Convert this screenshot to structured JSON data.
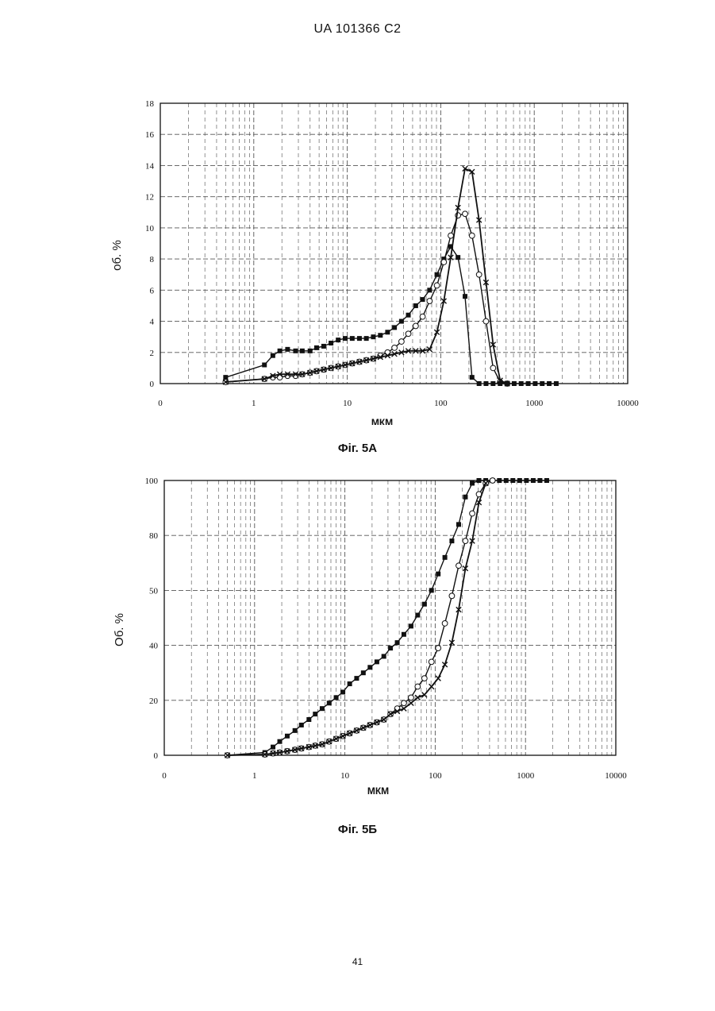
{
  "header": "UA   101366   C2",
  "page_number": "41",
  "captions": [
    "Фіг. 5А",
    "Фіг. 5Б"
  ],
  "chart_data": [
    {
      "type": "line",
      "xscale": "log",
      "xlabel": "МКМ",
      "ylabel": "об. %",
      "xticks": [
        "0",
        "1",
        "10",
        "100",
        "1000",
        "10000"
      ],
      "yticks": [
        "0",
        "2",
        "4",
        "6",
        "8",
        "10",
        "12",
        "14",
        "16",
        "18"
      ],
      "ylim": [
        0,
        18
      ],
      "grid": true,
      "series": [
        {
          "marker": "square",
          "x": [
            0.5,
            1.3,
            1.6,
            1.9,
            2.3,
            2.8,
            3.3,
            4.0,
            4.7,
            5.6,
            6.7,
            8.0,
            9.5,
            11.3,
            13.5,
            16,
            19,
            22.6,
            27,
            32,
            38,
            45,
            54,
            64,
            76,
            91,
            108,
            128,
            153,
            182,
            216,
            257
          ],
          "y": [
            0.4,
            1.2,
            1.8,
            2.1,
            2.2,
            2.1,
            2.1,
            2.1,
            2.3,
            2.4,
            2.6,
            2.8,
            2.9,
            2.9,
            2.9,
            2.9,
            3.0,
            3.1,
            3.3,
            3.6,
            4.0,
            4.4,
            5.0,
            5.4,
            6.0,
            7.0,
            8.0,
            8.8,
            8.1,
            5.6,
            0.4,
            0
          ]
        },
        {
          "marker": "circle",
          "x": [
            0.5,
            1.3,
            1.6,
            1.9,
            2.3,
            2.8,
            3.3,
            4.0,
            4.7,
            5.6,
            6.7,
            8.0,
            9.5,
            11.3,
            13.5,
            16,
            19,
            22.6,
            27,
            32,
            38,
            45,
            54,
            64,
            76,
            91,
            108,
            128,
            153,
            182,
            216,
            257,
            305,
            363,
            432,
            514
          ],
          "y": [
            0.1,
            0.3,
            0.4,
            0.4,
            0.5,
            0.5,
            0.6,
            0.7,
            0.8,
            0.9,
            1.0,
            1.1,
            1.2,
            1.3,
            1.4,
            1.5,
            1.6,
            1.8,
            2.0,
            2.3,
            2.7,
            3.2,
            3.7,
            4.3,
            5.3,
            6.3,
            7.8,
            9.5,
            10.8,
            10.9,
            9.5,
            7.0,
            4.0,
            1.0,
            0.1,
            0
          ]
        },
        {
          "marker": "x",
          "x": [
            0.5,
            1.3,
            1.6,
            1.9,
            2.3,
            2.8,
            3.3,
            4.0,
            4.7,
            5.6,
            6.7,
            8.0,
            9.5,
            11.3,
            13.5,
            16,
            19,
            22.6,
            27,
            32,
            38,
            45,
            54,
            64,
            76,
            91,
            108,
            128,
            153,
            182,
            216,
            257,
            305,
            363,
            432,
            514
          ],
          "y": [
            0.1,
            0.3,
            0.5,
            0.6,
            0.6,
            0.6,
            0.6,
            0.7,
            0.8,
            0.9,
            1.0,
            1.1,
            1.2,
            1.3,
            1.4,
            1.5,
            1.6,
            1.7,
            1.8,
            1.9,
            2.0,
            2.1,
            2.1,
            2.1,
            2.2,
            3.3,
            5.3,
            8.1,
            11.3,
            13.8,
            13.6,
            10.5,
            6.5,
            2.5,
            0.2,
            0
          ]
        },
        {
          "marker": "square",
          "x": [
            305,
            363,
            432,
            514,
            610,
            725,
            862,
            1024,
            1217,
            1446,
            1719
          ],
          "y": [
            0,
            0,
            0,
            0,
            0,
            0,
            0,
            0,
            0,
            0,
            0
          ]
        }
      ]
    },
    {
      "type": "line",
      "xscale": "log",
      "xlabel": "МКМ",
      "ylabel": "Об. %",
      "xticks": [
        "0",
        "1",
        "10",
        "100",
        "1000",
        "10000"
      ],
      "yticks": [
        "0",
        "20",
        "40",
        "50",
        "80",
        "100"
      ],
      "ylim": [
        0,
        100
      ],
      "grid": true,
      "series": [
        {
          "marker": "square",
          "x": [
            0.5,
            1.3,
            1.6,
            1.9,
            2.3,
            2.8,
            3.3,
            4.0,
            4.7,
            5.6,
            6.7,
            8.0,
            9.5,
            11.3,
            13.5,
            16,
            19,
            22.6,
            27,
            32,
            38,
            45,
            54,
            64,
            76,
            91,
            108,
            128,
            153,
            182,
            216,
            257,
            305,
            363,
            432,
            514,
            610,
            725,
            862,
            1024,
            1217,
            1446,
            1719
          ],
          "y": [
            0,
            1,
            3,
            5,
            7,
            9,
            11,
            13,
            15,
            17,
            19,
            21,
            23,
            26,
            28,
            30,
            32,
            34,
            36,
            39,
            41,
            44,
            47,
            51,
            55,
            60,
            66,
            72,
            78,
            84,
            94,
            99,
            100,
            100,
            100,
            100,
            100,
            100,
            100,
            100,
            100,
            100,
            100
          ]
        },
        {
          "marker": "circle",
          "x": [
            0.5,
            1.3,
            1.6,
            1.9,
            2.3,
            2.8,
            3.3,
            4.0,
            4.7,
            5.6,
            6.7,
            8.0,
            9.5,
            11.3,
            13.5,
            16,
            19,
            22.6,
            27,
            32,
            38,
            45,
            54,
            64,
            76,
            91,
            108,
            128,
            153,
            182,
            216,
            257,
            305,
            363,
            432
          ],
          "y": [
            0,
            0.3,
            0.7,
            1,
            1.5,
            2,
            2.5,
            3,
            3.5,
            4,
            5,
            6,
            7,
            8,
            9,
            10,
            11,
            12,
            13,
            15,
            17,
            19,
            21,
            25,
            28,
            34,
            39,
            48,
            58,
            69,
            78,
            88,
            95,
            99,
            100
          ]
        },
        {
          "marker": "x",
          "x": [
            0.5,
            1.3,
            1.6,
            1.9,
            2.3,
            2.8,
            3.3,
            4.0,
            4.7,
            5.6,
            6.7,
            8.0,
            9.5,
            11.3,
            13.5,
            16,
            19,
            22.6,
            27,
            32,
            38,
            45,
            54,
            64,
            76,
            91,
            108,
            128,
            153,
            182,
            216,
            257,
            305,
            363
          ],
          "y": [
            0,
            0.3,
            0.7,
            1,
            1.5,
            2,
            2.5,
            3,
            3.5,
            4,
            5,
            6,
            7,
            8,
            9,
            10,
            11,
            12,
            13,
            15,
            16,
            17,
            19,
            21,
            22,
            25,
            28,
            33,
            41,
            53,
            68,
            78,
            92,
            99
          ]
        }
      ]
    }
  ]
}
